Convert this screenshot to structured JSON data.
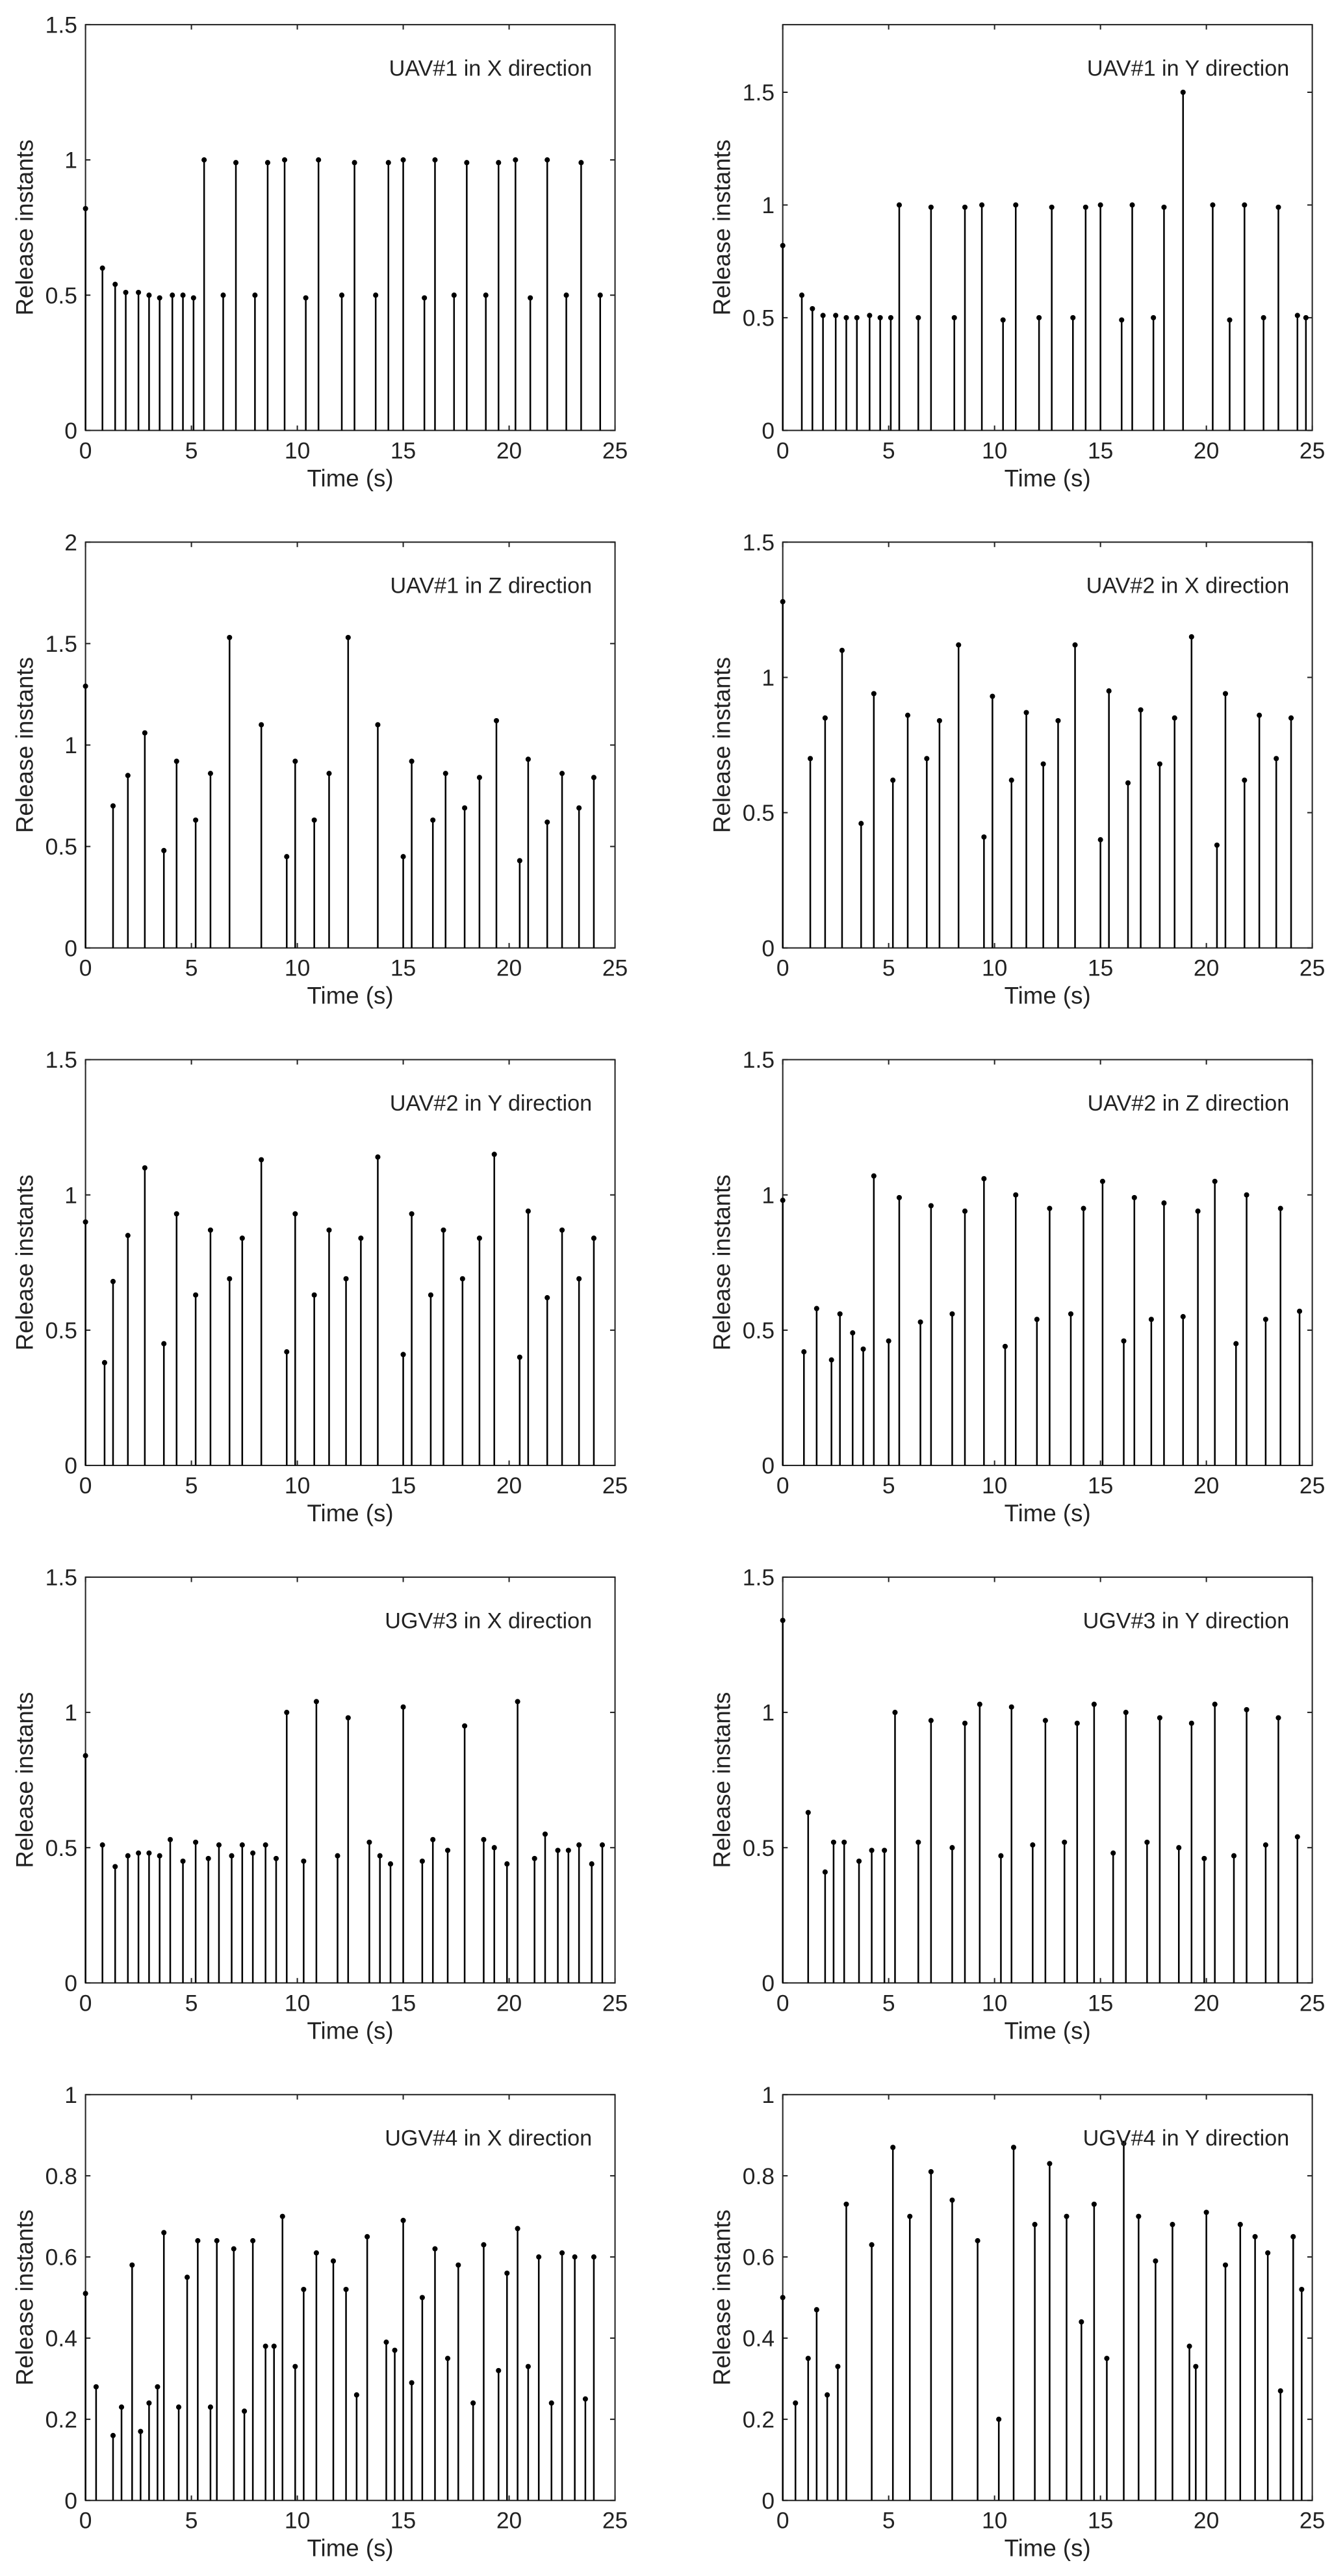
{
  "chart_data": [
    {
      "type": "stem",
      "title": "UAV#1 in X direction",
      "xlabel": "Time (s)",
      "ylabel": "Release instants",
      "color": "#000000",
      "xlim": [
        0,
        25
      ],
      "xticks": [
        0,
        5,
        10,
        15,
        20,
        25
      ],
      "ylim": [
        0,
        1.5
      ],
      "yticks": [
        0,
        0.5,
        1,
        1.5
      ],
      "x": [
        0,
        0.8,
        1.4,
        1.9,
        2.5,
        3.0,
        3.5,
        4.1,
        4.6,
        5.1,
        5.6,
        6.5,
        7.1,
        8.0,
        8.6,
        9.4,
        10.4,
        11.0,
        12.1,
        12.7,
        13.7,
        14.3,
        15.0,
        16.0,
        16.5,
        17.4,
        18.0,
        18.9,
        19.5,
        20.3,
        21.0,
        21.8,
        22.7,
        23.4,
        24.3
      ],
      "values": [
        0.82,
        0.6,
        0.54,
        0.51,
        0.51,
        0.5,
        0.49,
        0.5,
        0.5,
        0.49,
        1.0,
        0.5,
        0.99,
        0.5,
        0.99,
        1.0,
        0.49,
        1.0,
        0.5,
        0.99,
        0.5,
        0.99,
        1.0,
        0.49,
        1.0,
        0.5,
        0.99,
        0.5,
        0.99,
        1.0,
        0.49,
        1.0,
        0.5,
        0.99,
        0.5
      ]
    },
    {
      "type": "stem",
      "title": "UAV#1 in Y direction",
      "xlabel": "Time (s)",
      "ylabel": "Release instants",
      "color": "#000000",
      "xlim": [
        0,
        25
      ],
      "xticks": [
        0,
        5,
        10,
        15,
        20,
        25
      ],
      "ylim": [
        0,
        1.8
      ],
      "yticks": [
        0,
        0.5,
        1,
        1.5
      ],
      "x": [
        0,
        0.9,
        1.4,
        1.9,
        2.5,
        3.0,
        3.5,
        4.1,
        4.6,
        5.1,
        5.5,
        6.4,
        7.0,
        8.1,
        8.6,
        9.4,
        10.4,
        11.0,
        12.1,
        12.7,
        13.7,
        14.3,
        15.0,
        16.0,
        16.5,
        17.5,
        18.0,
        18.9,
        20.3,
        21.1,
        21.8,
        22.7,
        23.4,
        24.3,
        24.7
      ],
      "values": [
        0.82,
        0.6,
        0.54,
        0.51,
        0.51,
        0.5,
        0.5,
        0.51,
        0.5,
        0.5,
        1.0,
        0.5,
        0.99,
        0.5,
        0.99,
        1.0,
        0.49,
        1.0,
        0.5,
        0.99,
        0.5,
        0.99,
        1.0,
        0.49,
        1.0,
        0.5,
        0.99,
        1.5,
        1.0,
        0.49,
        1.0,
        0.5,
        0.99,
        0.51,
        0.5
      ]
    },
    {
      "type": "stem",
      "title": "UAV#1 in Z direction",
      "xlabel": "Time (s)",
      "ylabel": "Release instants",
      "color": "#000000",
      "xlim": [
        0,
        25
      ],
      "xticks": [
        0,
        5,
        10,
        15,
        20,
        25
      ],
      "ylim": [
        0,
        2
      ],
      "yticks": [
        0,
        0.5,
        1,
        1.5,
        2
      ],
      "x": [
        0,
        1.3,
        2.0,
        2.8,
        3.7,
        4.3,
        5.2,
        5.9,
        6.8,
        8.3,
        9.5,
        9.9,
        10.8,
        11.5,
        12.4,
        13.8,
        15.0,
        15.4,
        16.4,
        17.0,
        17.9,
        18.6,
        19.4,
        20.5,
        20.9,
        21.8,
        22.5,
        23.3,
        24.0
      ],
      "values": [
        1.29,
        0.7,
        0.85,
        1.06,
        0.48,
        0.92,
        0.63,
        0.86,
        1.53,
        1.1,
        0.45,
        0.92,
        0.63,
        0.86,
        1.53,
        1.1,
        0.45,
        0.92,
        0.63,
        0.86,
        0.69,
        0.84,
        1.12,
        0.43,
        0.93,
        0.62,
        0.86,
        0.69,
        0.84
      ]
    },
    {
      "type": "stem",
      "title": "UAV#2 in X direction",
      "xlabel": "Time (s)",
      "ylabel": "Release instants",
      "color": "#000000",
      "xlim": [
        0,
        25
      ],
      "xticks": [
        0,
        5,
        10,
        15,
        20,
        25
      ],
      "ylim": [
        0,
        1.5
      ],
      "yticks": [
        0,
        0.5,
        1,
        1.5
      ],
      "x": [
        0,
        1.3,
        2.0,
        2.8,
        3.7,
        4.3,
        5.2,
        5.9,
        6.8,
        7.4,
        8.3,
        9.5,
        9.9,
        10.8,
        11.5,
        12.3,
        13.0,
        13.8,
        15.0,
        15.4,
        16.3,
        16.9,
        17.8,
        18.5,
        19.3,
        20.5,
        20.9,
        21.8,
        22.5,
        23.3,
        24.0
      ],
      "values": [
        1.28,
        0.7,
        0.85,
        1.1,
        0.46,
        0.94,
        0.62,
        0.86,
        0.7,
        0.84,
        1.12,
        0.41,
        0.93,
        0.62,
        0.87,
        0.68,
        0.84,
        1.12,
        0.4,
        0.95,
        0.61,
        0.88,
        0.68,
        0.85,
        1.15,
        0.38,
        0.94,
        0.62,
        0.86,
        0.7,
        0.85
      ]
    },
    {
      "type": "stem",
      "title": "UAV#2 in Y direction",
      "xlabel": "Time (s)",
      "ylabel": "Release instants",
      "color": "#000000",
      "xlim": [
        0,
        25
      ],
      "xticks": [
        0,
        5,
        10,
        15,
        20,
        25
      ],
      "ylim": [
        0,
        1.5
      ],
      "yticks": [
        0,
        0.5,
        1,
        1.5
      ],
      "x": [
        0,
        0.9,
        1.3,
        2.0,
        2.8,
        3.7,
        4.3,
        5.2,
        5.9,
        6.8,
        7.4,
        8.3,
        9.5,
        9.9,
        10.8,
        11.5,
        12.3,
        13.0,
        13.8,
        15.0,
        15.4,
        16.3,
        16.9,
        17.8,
        18.6,
        19.3,
        20.5,
        20.9,
        21.8,
        22.5,
        23.3,
        24.0
      ],
      "values": [
        0.9,
        0.38,
        0.68,
        0.85,
        1.1,
        0.45,
        0.93,
        0.63,
        0.87,
        0.69,
        0.84,
        1.13,
        0.42,
        0.93,
        0.63,
        0.87,
        0.69,
        0.84,
        1.14,
        0.41,
        0.93,
        0.63,
        0.87,
        0.69,
        0.84,
        1.15,
        0.4,
        0.94,
        0.62,
        0.87,
        0.69,
        0.84
      ]
    },
    {
      "type": "stem",
      "title": "UAV#2 in Z direction",
      "xlabel": "Time (s)",
      "ylabel": "Release instants",
      "color": "#000000",
      "xlim": [
        0,
        25
      ],
      "xticks": [
        0,
        5,
        10,
        15,
        20,
        25
      ],
      "ylim": [
        0,
        1.5
      ],
      "yticks": [
        0,
        0.5,
        1,
        1.5
      ],
      "x": [
        0,
        1.0,
        1.6,
        2.3,
        2.7,
        3.3,
        3.8,
        4.3,
        5.0,
        5.5,
        6.5,
        7.0,
        8.0,
        8.6,
        9.5,
        10.5,
        11.0,
        12.0,
        12.6,
        13.6,
        14.2,
        15.1,
        16.1,
        16.6,
        17.4,
        18.0,
        18.9,
        19.6,
        20.4,
        21.4,
        21.9,
        22.8,
        23.5,
        24.4
      ],
      "values": [
        0.98,
        0.42,
        0.58,
        0.39,
        0.56,
        0.49,
        0.43,
        1.07,
        0.46,
        0.99,
        0.53,
        0.96,
        0.56,
        0.94,
        1.06,
        0.44,
        1.0,
        0.54,
        0.95,
        0.56,
        0.95,
        1.05,
        0.46,
        0.99,
        0.54,
        0.97,
        0.55,
        0.94,
        1.05,
        0.45,
        1.0,
        0.54,
        0.95,
        0.57
      ]
    },
    {
      "type": "stem",
      "title": "UGV#3 in X direction",
      "xlabel": "Time (s)",
      "ylabel": "Release instants",
      "color": "#000000",
      "xlim": [
        0,
        25
      ],
      "xticks": [
        0,
        5,
        10,
        15,
        20,
        25
      ],
      "ylim": [
        0,
        1.5
      ],
      "yticks": [
        0,
        0.5,
        1,
        1.5
      ],
      "x": [
        0,
        0.8,
        1.4,
        2.0,
        2.5,
        3.0,
        3.5,
        4.0,
        4.6,
        5.2,
        5.8,
        6.3,
        6.9,
        7.4,
        7.9,
        8.5,
        9.0,
        9.5,
        10.3,
        10.9,
        11.9,
        12.4,
        13.4,
        13.9,
        14.4,
        15.0,
        15.9,
        16.4,
        17.1,
        17.9,
        18.8,
        19.3,
        19.9,
        20.4,
        21.2,
        21.7,
        22.3,
        22.8,
        23.3,
        23.9,
        24.4
      ],
      "values": [
        0.84,
        0.51,
        0.43,
        0.47,
        0.48,
        0.48,
        0.47,
        0.53,
        0.45,
        0.52,
        0.46,
        0.51,
        0.47,
        0.51,
        0.48,
        0.51,
        0.46,
        1.0,
        0.45,
        1.04,
        0.47,
        0.98,
        0.52,
        0.47,
        0.44,
        1.02,
        0.45,
        0.53,
        0.49,
        0.95,
        0.53,
        0.5,
        0.44,
        1.04,
        0.46,
        0.55,
        0.49,
        0.49,
        0.51,
        0.44,
        0.51
      ]
    },
    {
      "type": "stem",
      "title": "UGV#3 in Y direction",
      "xlabel": "Time (s)",
      "ylabel": "Release instants",
      "color": "#000000",
      "xlim": [
        0,
        25
      ],
      "xticks": [
        0,
        5,
        10,
        15,
        20,
        25
      ],
      "ylim": [
        0,
        1.5
      ],
      "yticks": [
        0,
        0.5,
        1,
        1.5
      ],
      "x": [
        0,
        1.2,
        2.0,
        2.4,
        2.9,
        3.6,
        4.2,
        4.8,
        5.3,
        6.4,
        7.0,
        8.0,
        8.6,
        9.3,
        10.3,
        10.8,
        11.8,
        12.4,
        13.3,
        13.9,
        14.7,
        15.6,
        16.2,
        17.2,
        17.8,
        18.7,
        19.3,
        19.9,
        20.4,
        21.3,
        21.9,
        22.8,
        23.4,
        24.3
      ],
      "values": [
        1.34,
        0.63,
        0.41,
        0.52,
        0.52,
        0.45,
        0.49,
        0.49,
        1.0,
        0.52,
        0.97,
        0.5,
        0.96,
        1.03,
        0.47,
        1.02,
        0.51,
        0.97,
        0.52,
        0.96,
        1.03,
        0.48,
        1.0,
        0.52,
        0.98,
        0.5,
        0.96,
        0.46,
        1.03,
        0.47,
        1.01,
        0.51,
        0.98,
        0.54
      ]
    },
    {
      "type": "stem",
      "title": "UGV#4 in X direction",
      "xlabel": "Time (s)",
      "ylabel": "Release instants",
      "color": "#000000",
      "xlim": [
        0,
        25
      ],
      "xticks": [
        0,
        5,
        10,
        15,
        20,
        25
      ],
      "ylim": [
        0,
        1
      ],
      "yticks": [
        0,
        0.2,
        0.4,
        0.6,
        0.8,
        1
      ],
      "x": [
        0,
        0.5,
        1.3,
        1.7,
        2.2,
        2.6,
        3.0,
        3.4,
        3.7,
        4.4,
        4.8,
        5.3,
        5.9,
        6.2,
        7.0,
        7.5,
        7.9,
        8.5,
        8.9,
        9.3,
        9.9,
        10.3,
        10.9,
        11.7,
        12.3,
        12.8,
        13.3,
        14.2,
        14.6,
        15.0,
        15.4,
        15.9,
        16.5,
        17.1,
        17.6,
        18.3,
        18.8,
        19.5,
        19.9,
        20.4,
        20.9,
        21.4,
        22.0,
        22.5,
        23.1,
        23.6,
        24.0
      ],
      "values": [
        0.51,
        0.28,
        0.16,
        0.23,
        0.58,
        0.17,
        0.24,
        0.28,
        0.66,
        0.23,
        0.55,
        0.64,
        0.23,
        0.64,
        0.62,
        0.22,
        0.64,
        0.38,
        0.38,
        0.7,
        0.33,
        0.52,
        0.61,
        0.59,
        0.52,
        0.26,
        0.65,
        0.39,
        0.37,
        0.69,
        0.29,
        0.5,
        0.62,
        0.35,
        0.58,
        0.24,
        0.63,
        0.32,
        0.56,
        0.67,
        0.33,
        0.6,
        0.24,
        0.61,
        0.6,
        0.25,
        0.6
      ]
    },
    {
      "type": "stem",
      "title": "UGV#4 in Y direction",
      "xlabel": "Time (s)",
      "ylabel": "Release instants",
      "color": "#000000",
      "xlim": [
        0,
        25
      ],
      "xticks": [
        0,
        5,
        10,
        15,
        20,
        25
      ],
      "ylim": [
        0,
        1
      ],
      "yticks": [
        0,
        0.2,
        0.4,
        0.6,
        0.8,
        1
      ],
      "x": [
        0,
        0.6,
        1.2,
        1.6,
        2.1,
        2.6,
        3.0,
        4.2,
        5.2,
        6.0,
        7.0,
        8.0,
        9.2,
        10.2,
        10.9,
        11.9,
        12.6,
        13.4,
        14.1,
        14.7,
        15.3,
        16.1,
        16.8,
        17.6,
        18.4,
        19.2,
        19.5,
        20.0,
        20.9,
        21.6,
        22.3,
        22.9,
        23.5,
        24.1,
        24.5
      ],
      "values": [
        0.5,
        0.24,
        0.35,
        0.47,
        0.26,
        0.33,
        0.73,
        0.63,
        0.87,
        0.7,
        0.81,
        0.74,
        0.64,
        0.2,
        0.87,
        0.68,
        0.83,
        0.7,
        0.44,
        0.73,
        0.35,
        0.88,
        0.7,
        0.59,
        0.68,
        0.38,
        0.33,
        0.71,
        0.58,
        0.68,
        0.65,
        0.61,
        0.27,
        0.65,
        0.52
      ]
    }
  ]
}
